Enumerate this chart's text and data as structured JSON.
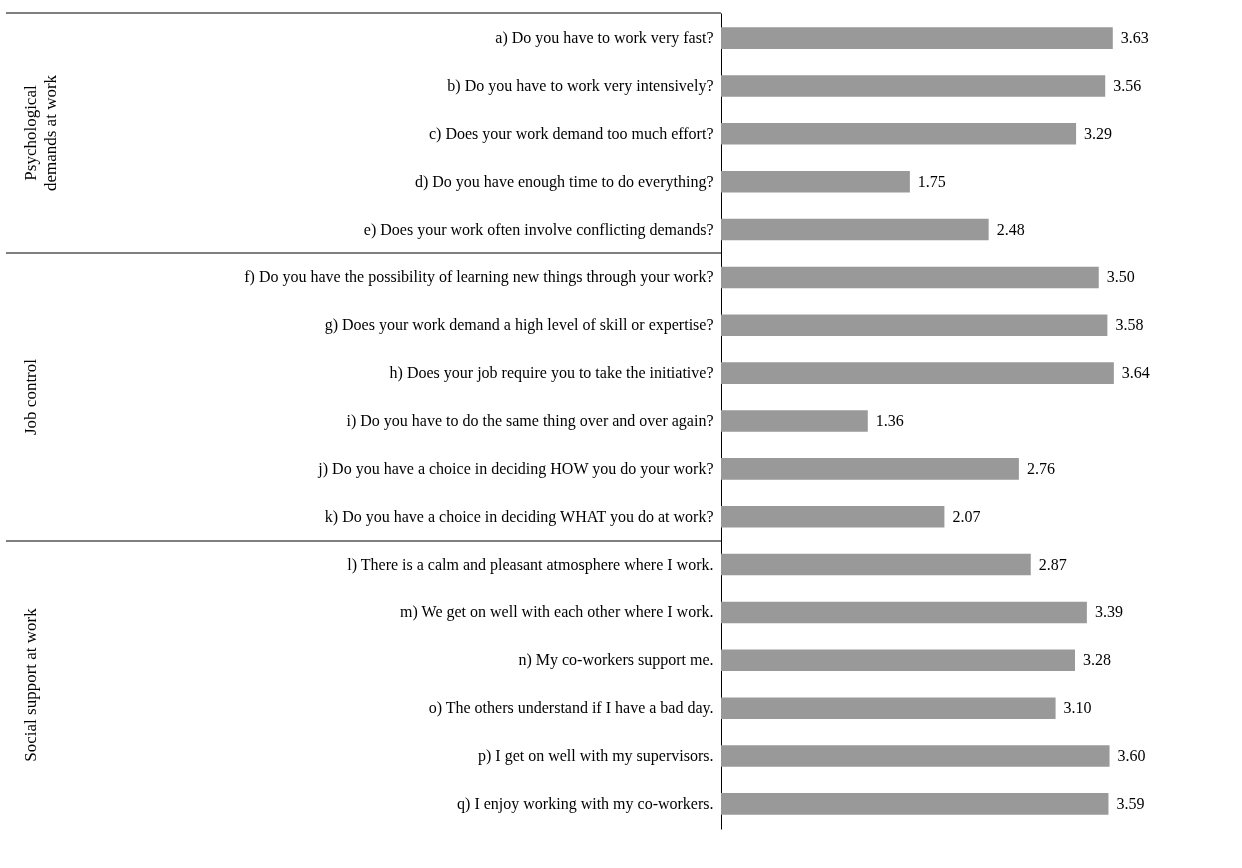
{
  "chart_data": {
    "type": "bar",
    "orientation": "horizontal",
    "categories": [
      "a) Do you have to work very fast?",
      "b) Do you have to work very intensively?",
      "c) Does your work demand too much effort?",
      "d) Do you have enough time to do everything?",
      "e) Does your work often involve conflicting demands?",
      "f) Do you have the possibility of learning new things through your work?",
      "g) Does your work demand a high level of skill or expertise?",
      "h) Does your job require you to take the initiative?",
      "i) Do you have to do the same thing over and over again?",
      "j) Do you have a choice in deciding HOW you do your work?",
      "k) Do you have a choice in deciding WHAT you do at work?",
      "l) There is a calm and pleasant atmosphere where I work.",
      "m) We get on well with each other where I work.",
      "n) My co-workers support me.",
      "o) The others understand if I have a bad day.",
      "p) I get on well with my supervisors.",
      "q) I enjoy working with my co-workers."
    ],
    "values": [
      3.63,
      3.56,
      3.29,
      1.75,
      2.48,
      3.5,
      3.58,
      3.64,
      1.36,
      2.76,
      2.07,
      2.87,
      3.39,
      3.28,
      3.1,
      3.6,
      3.59
    ],
    "value_labels": [
      "3.63",
      "3.56",
      "3.29",
      "1.75",
      "2.48",
      "3.50",
      "3.58",
      "3.64",
      "1.36",
      "2.76",
      "2.07",
      "2.87",
      "3.39",
      "3.28",
      "3.10",
      "3.60",
      "3.59"
    ],
    "color": "#999999",
    "annotations": [
      "Psychological demands at work",
      "Job control",
      "Social support at work"
    ]
  }
}
